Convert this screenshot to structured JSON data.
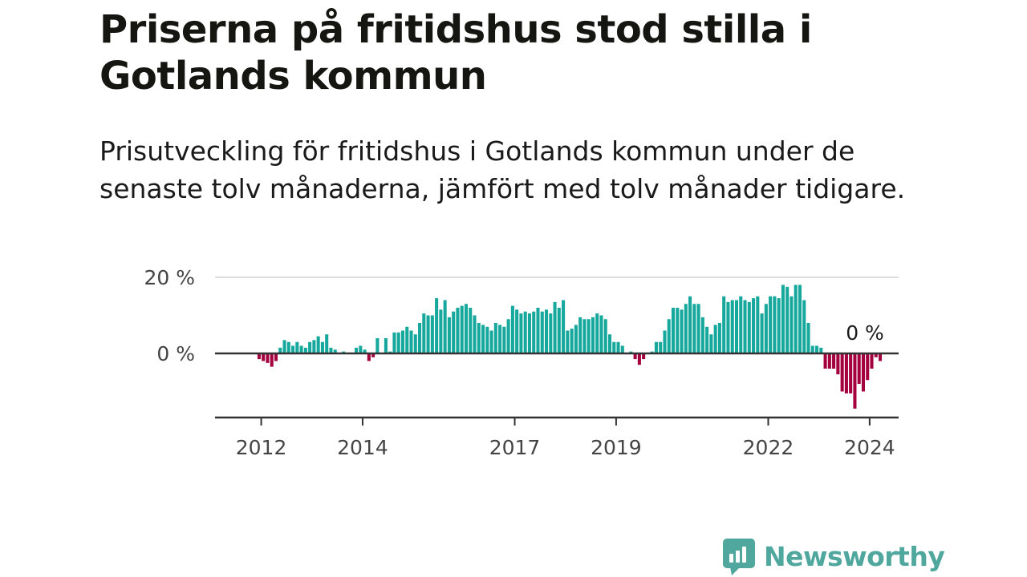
{
  "header": {
    "title": "Priserna på fritidshus stod stilla i Gotlands kommun",
    "subtitle": "Prisutveckling för fritidshus i Gotlands kommun under de senaste tolv månaderna, jämfört med tolv månader tidigare."
  },
  "brand": {
    "name": "Newsworthy",
    "icon": "newsworthy-chart-bubble-icon"
  },
  "colors": {
    "positive": "#17a89d",
    "negative": "#a4003e",
    "grid": "#dddddd",
    "axis": "#333333"
  },
  "chart_data": {
    "type": "bar",
    "x_start": "2011-09",
    "frequency": "monthly",
    "x_ticks": [
      "2012",
      "2014",
      "2017",
      "2019",
      "2022",
      "2024"
    ],
    "y_ticks": [
      "0 %",
      "20 %"
    ],
    "ylim": [
      -16,
      21
    ],
    "grid": true,
    "annotation": "0 %",
    "values": [
      0,
      0,
      0,
      -1.5,
      -2,
      -2.5,
      -3.5,
      -2,
      1.5,
      3.5,
      3,
      2,
      3,
      2,
      1.5,
      3,
      3.5,
      4.5,
      3,
      5,
      1.5,
      1,
      0,
      0.5,
      0,
      0,
      1.5,
      2,
      1,
      -2,
      -1,
      4,
      0,
      4,
      0.5,
      5.5,
      5.5,
      6,
      7,
      6,
      5,
      8,
      10.5,
      10,
      10,
      14.5,
      11.5,
      14,
      9.5,
      11,
      12,
      12.5,
      13,
      12,
      10,
      8,
      7.5,
      7,
      6,
      8,
      7.5,
      7,
      9,
      12.5,
      11.5,
      10.5,
      11,
      10.5,
      11,
      12,
      11,
      11.5,
      10.5,
      13.5,
      12,
      14,
      6,
      6.5,
      7.5,
      9.5,
      9,
      9,
      9.5,
      10.5,
      10,
      9,
      5,
      3,
      3,
      2,
      0,
      0.5,
      -1.5,
      -3,
      -1.5,
      0,
      0.5,
      3,
      3,
      6,
      9,
      12,
      12,
      11.5,
      13,
      15,
      13,
      13,
      9.5,
      7,
      5,
      7.5,
      8,
      15,
      13.5,
      14,
      14,
      15,
      14,
      13.5,
      14.5,
      15,
      10.5,
      13,
      15,
      15,
      14.5,
      18,
      17.5,
      15,
      18,
      18,
      14,
      8,
      2,
      2,
      1.5,
      -4,
      -4,
      -4,
      -5.5,
      -10,
      -10.5,
      -10.5,
      -14.5,
      -8,
      -10,
      -7,
      -4,
      -1,
      -2
    ]
  }
}
